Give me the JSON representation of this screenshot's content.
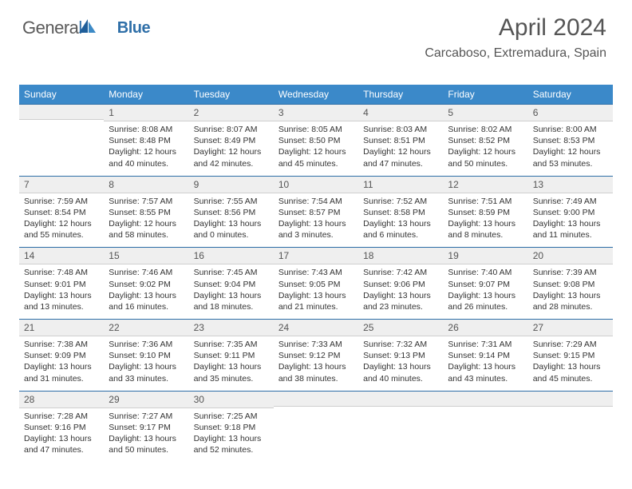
{
  "logo": {
    "text_general": "Genera",
    "text_l": "l",
    "text_blue": "Blue"
  },
  "header": {
    "month": "April 2024",
    "location": "Carcaboso, Extremadura, Spain"
  },
  "style": {
    "header_bg": "#3b89c9",
    "header_fg": "#ffffff",
    "daybar_bg": "#efefef",
    "daybar_border_top": "#2d6ea7",
    "body_font_size": 10.5
  },
  "days_of_week": [
    "Sunday",
    "Monday",
    "Tuesday",
    "Wednesday",
    "Thursday",
    "Friday",
    "Saturday"
  ],
  "weeks": [
    [
      null,
      {
        "n": "1",
        "sunrise": "8:08 AM",
        "sunset": "8:48 PM",
        "daylight": "12 hours and 40 minutes."
      },
      {
        "n": "2",
        "sunrise": "8:07 AM",
        "sunset": "8:49 PM",
        "daylight": "12 hours and 42 minutes."
      },
      {
        "n": "3",
        "sunrise": "8:05 AM",
        "sunset": "8:50 PM",
        "daylight": "12 hours and 45 minutes."
      },
      {
        "n": "4",
        "sunrise": "8:03 AM",
        "sunset": "8:51 PM",
        "daylight": "12 hours and 47 minutes."
      },
      {
        "n": "5",
        "sunrise": "8:02 AM",
        "sunset": "8:52 PM",
        "daylight": "12 hours and 50 minutes."
      },
      {
        "n": "6",
        "sunrise": "8:00 AM",
        "sunset": "8:53 PM",
        "daylight": "12 hours and 53 minutes."
      }
    ],
    [
      {
        "n": "7",
        "sunrise": "7:59 AM",
        "sunset": "8:54 PM",
        "daylight": "12 hours and 55 minutes."
      },
      {
        "n": "8",
        "sunrise": "7:57 AM",
        "sunset": "8:55 PM",
        "daylight": "12 hours and 58 minutes."
      },
      {
        "n": "9",
        "sunrise": "7:55 AM",
        "sunset": "8:56 PM",
        "daylight": "13 hours and 0 minutes."
      },
      {
        "n": "10",
        "sunrise": "7:54 AM",
        "sunset": "8:57 PM",
        "daylight": "13 hours and 3 minutes."
      },
      {
        "n": "11",
        "sunrise": "7:52 AM",
        "sunset": "8:58 PM",
        "daylight": "13 hours and 6 minutes."
      },
      {
        "n": "12",
        "sunrise": "7:51 AM",
        "sunset": "8:59 PM",
        "daylight": "13 hours and 8 minutes."
      },
      {
        "n": "13",
        "sunrise": "7:49 AM",
        "sunset": "9:00 PM",
        "daylight": "13 hours and 11 minutes."
      }
    ],
    [
      {
        "n": "14",
        "sunrise": "7:48 AM",
        "sunset": "9:01 PM",
        "daylight": "13 hours and 13 minutes."
      },
      {
        "n": "15",
        "sunrise": "7:46 AM",
        "sunset": "9:02 PM",
        "daylight": "13 hours and 16 minutes."
      },
      {
        "n": "16",
        "sunrise": "7:45 AM",
        "sunset": "9:04 PM",
        "daylight": "13 hours and 18 minutes."
      },
      {
        "n": "17",
        "sunrise": "7:43 AM",
        "sunset": "9:05 PM",
        "daylight": "13 hours and 21 minutes."
      },
      {
        "n": "18",
        "sunrise": "7:42 AM",
        "sunset": "9:06 PM",
        "daylight": "13 hours and 23 minutes."
      },
      {
        "n": "19",
        "sunrise": "7:40 AM",
        "sunset": "9:07 PM",
        "daylight": "13 hours and 26 minutes."
      },
      {
        "n": "20",
        "sunrise": "7:39 AM",
        "sunset": "9:08 PM",
        "daylight": "13 hours and 28 minutes."
      }
    ],
    [
      {
        "n": "21",
        "sunrise": "7:38 AM",
        "sunset": "9:09 PM",
        "daylight": "13 hours and 31 minutes."
      },
      {
        "n": "22",
        "sunrise": "7:36 AM",
        "sunset": "9:10 PM",
        "daylight": "13 hours and 33 minutes."
      },
      {
        "n": "23",
        "sunrise": "7:35 AM",
        "sunset": "9:11 PM",
        "daylight": "13 hours and 35 minutes."
      },
      {
        "n": "24",
        "sunrise": "7:33 AM",
        "sunset": "9:12 PM",
        "daylight": "13 hours and 38 minutes."
      },
      {
        "n": "25",
        "sunrise": "7:32 AM",
        "sunset": "9:13 PM",
        "daylight": "13 hours and 40 minutes."
      },
      {
        "n": "26",
        "sunrise": "7:31 AM",
        "sunset": "9:14 PM",
        "daylight": "13 hours and 43 minutes."
      },
      {
        "n": "27",
        "sunrise": "7:29 AM",
        "sunset": "9:15 PM",
        "daylight": "13 hours and 45 minutes."
      }
    ],
    [
      {
        "n": "28",
        "sunrise": "7:28 AM",
        "sunset": "9:16 PM",
        "daylight": "13 hours and 47 minutes."
      },
      {
        "n": "29",
        "sunrise": "7:27 AM",
        "sunset": "9:17 PM",
        "daylight": "13 hours and 50 minutes."
      },
      {
        "n": "30",
        "sunrise": "7:25 AM",
        "sunset": "9:18 PM",
        "daylight": "13 hours and 52 minutes."
      },
      null,
      null,
      null,
      null
    ]
  ],
  "labels": {
    "sunrise": "Sunrise: ",
    "sunset": "Sunset: ",
    "daylight": "Daylight: "
  }
}
